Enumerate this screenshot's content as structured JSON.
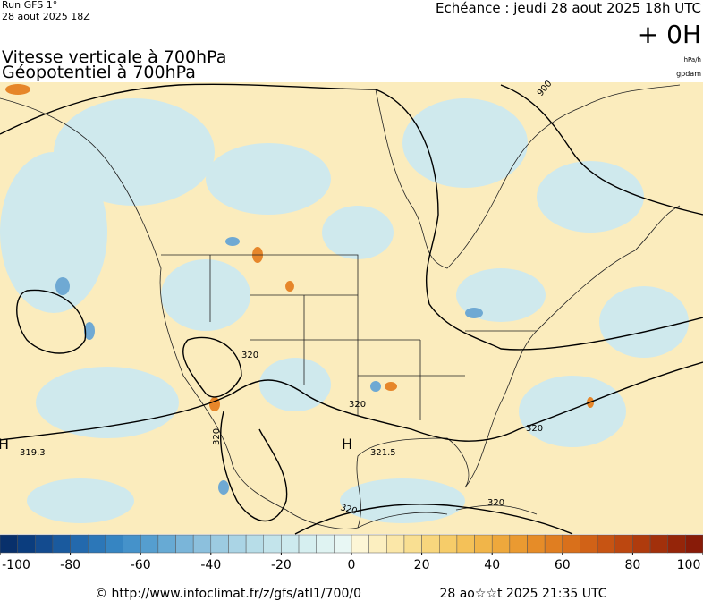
{
  "header": {
    "run": "Run GFS 1°",
    "date": "28 aout 2025 18Z",
    "echeance": "Echéance : jeudi 28 aout 2025 18h UTC",
    "lead": "+ 0H",
    "unit_1": "hPa/h",
    "unit_2": "gpdam"
  },
  "titles": [
    "Vitesse verticale à 700hPa",
    "Géopotentiel à 700hPa"
  ],
  "map": {
    "labels": [
      "900",
      "320",
      "320",
      "320",
      "320",
      "320",
      "320",
      "H",
      "321.5",
      "H",
      "319.3"
    ]
  },
  "colorbar": {
    "lim": [
      -100,
      100
    ],
    "ticks": [
      -100,
      -80,
      -60,
      -40,
      -20,
      0,
      20,
      40,
      60,
      80,
      100
    ],
    "colors": [
      "#08306b",
      "#0b3d7e",
      "#134b8f",
      "#1a5a9e",
      "#2369ad",
      "#2c77b8",
      "#3685c2",
      "#4592ca",
      "#559ecf",
      "#67aad4",
      "#7ab5d9",
      "#8cc0dd",
      "#9ccbe1",
      "#aad4e5",
      "#b7dde8",
      "#c3e4eb",
      "#cdeaee",
      "#d6eff0",
      "#dff3f2",
      "#e8f7f4",
      "#fdf6d6",
      "#fcefc0",
      "#fbe7a8",
      "#f9df92",
      "#f8d67d",
      "#f6cc69",
      "#f4c158",
      "#f1b549",
      "#eea83c",
      "#ea9a31",
      "#e68c28",
      "#e07e21",
      "#d9701b",
      "#d16217",
      "#c75413",
      "#bc4710",
      "#af3b0d",
      "#a2300b",
      "#952509",
      "#881b08"
    ]
  },
  "footer": {
    "url": "© http://www.infoclimat.fr/z/gfs/atl1/700/0",
    "timestamp": "28 ao☆☆t 2025 21:35 UTC"
  }
}
